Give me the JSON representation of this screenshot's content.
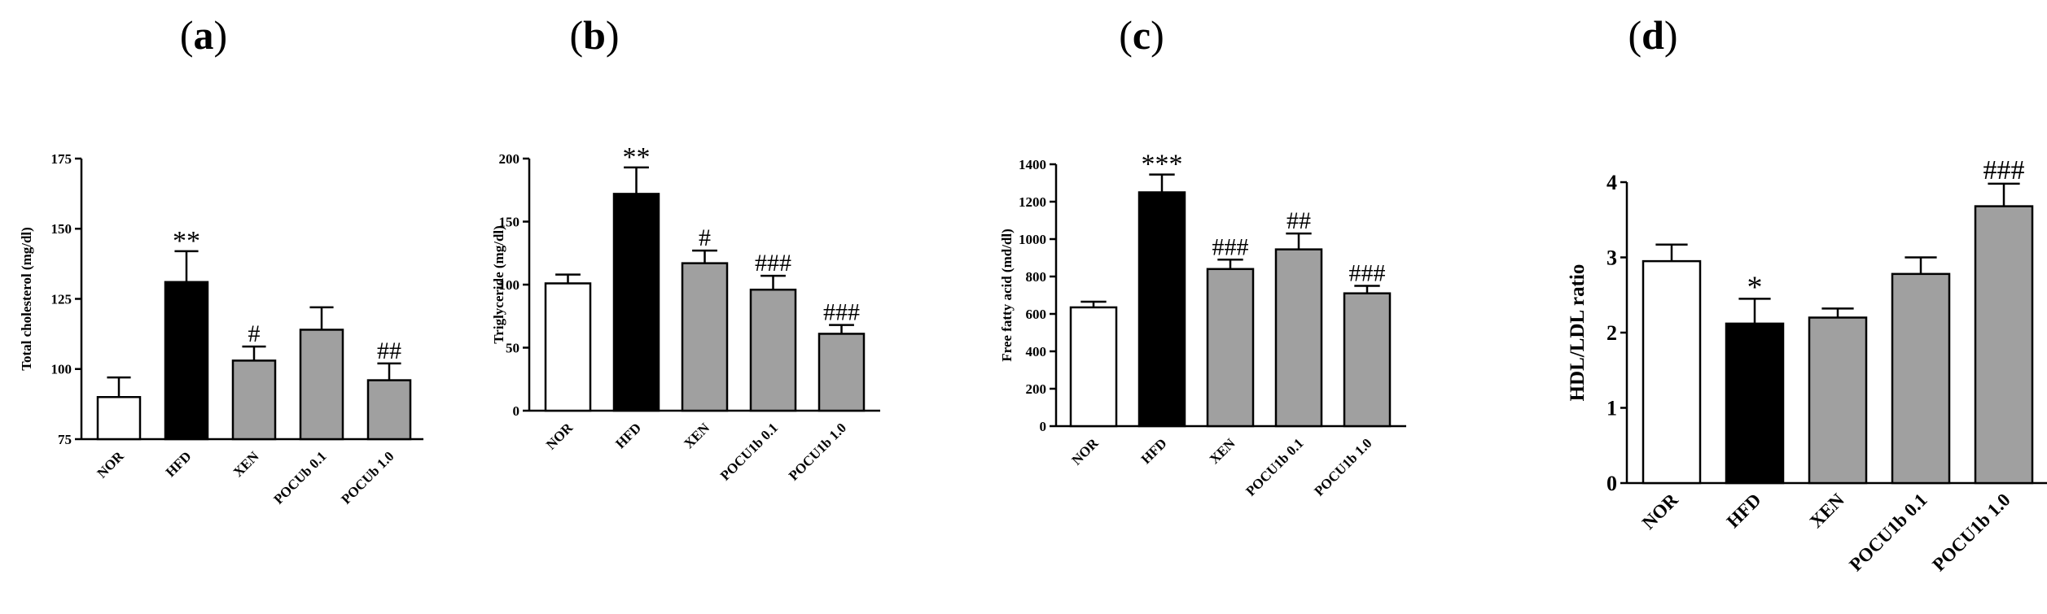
{
  "chart_data": [
    {
      "type": "bar",
      "panel": "a",
      "ylabel": "Total cholesterol (mg/dl)",
      "ylim": [
        75,
        175
      ],
      "yticks": [
        75,
        100,
        125,
        150,
        175
      ],
      "categories": [
        "NOR",
        "HFD",
        "XEN",
        "POCUb 0.1",
        "POCUb 1.0"
      ],
      "values": [
        90,
        131,
        103,
        114,
        96
      ],
      "errors": [
        7,
        11,
        5,
        8,
        6
      ],
      "colors": [
        "#ffffff",
        "#000000",
        "#a0a0a0",
        "#a0a0a0",
        "#a0a0a0"
      ],
      "annotations": [
        "",
        "**",
        "#",
        "",
        "##"
      ]
    },
    {
      "type": "bar",
      "panel": "b",
      "ylabel": "Triglyceride (mg/dl)",
      "ylim": [
        0,
        200
      ],
      "yticks": [
        0,
        50,
        100,
        150,
        200
      ],
      "categories": [
        "NOR",
        "HFD",
        "XEN",
        "POCU1b 0.1",
        "POCU1b 1.0"
      ],
      "values": [
        101,
        172,
        117,
        96,
        61
      ],
      "errors": [
        7,
        21,
        10,
        11,
        7
      ],
      "colors": [
        "#ffffff",
        "#000000",
        "#a0a0a0",
        "#a0a0a0",
        "#a0a0a0"
      ],
      "annotations": [
        "",
        "**",
        "#",
        "###",
        "###"
      ]
    },
    {
      "type": "bar",
      "panel": "c",
      "ylabel": "Free fatty acid (md/dl)",
      "ylim": [
        0,
        1400
      ],
      "yticks": [
        0,
        200,
        400,
        600,
        800,
        1000,
        1200,
        1400
      ],
      "categories": [
        "NOR",
        "HFD",
        "XEN",
        "POCU1b 0.1",
        "POCU1b 1.0"
      ],
      "values": [
        635,
        1250,
        840,
        945,
        710
      ],
      "errors": [
        30,
        95,
        50,
        85,
        40
      ],
      "colors": [
        "#ffffff",
        "#000000",
        "#a0a0a0",
        "#a0a0a0",
        "#a0a0a0"
      ],
      "annotations": [
        "",
        "***",
        "###",
        "##",
        "###"
      ]
    },
    {
      "type": "bar",
      "panel": "d",
      "ylabel": "HDL/LDL ratio",
      "ylim": [
        0,
        4
      ],
      "yticks": [
        0,
        1,
        2,
        3,
        4
      ],
      "categories": [
        "NOR",
        "HFD",
        "XEN",
        "POCU1b 0.1",
        "POCU1b 1.0"
      ],
      "values": [
        2.95,
        2.12,
        2.2,
        2.78,
        3.68
      ],
      "errors": [
        0.22,
        0.33,
        0.12,
        0.22,
        0.3
      ],
      "colors": [
        "#ffffff",
        "#000000",
        "#a0a0a0",
        "#a0a0a0",
        "#a0a0a0"
      ],
      "annotations": [
        "",
        "*",
        "",
        "",
        "###"
      ]
    }
  ],
  "panel_labels": {
    "a": {
      "open": "(",
      "letter": "a",
      "close": ")"
    },
    "b": {
      "open": "(",
      "letter": "b",
      "close": ")"
    },
    "c": {
      "open": "(",
      "letter": "c",
      "close": ")"
    },
    "d": {
      "open": "(",
      "letter": "d",
      "close": ")"
    }
  }
}
